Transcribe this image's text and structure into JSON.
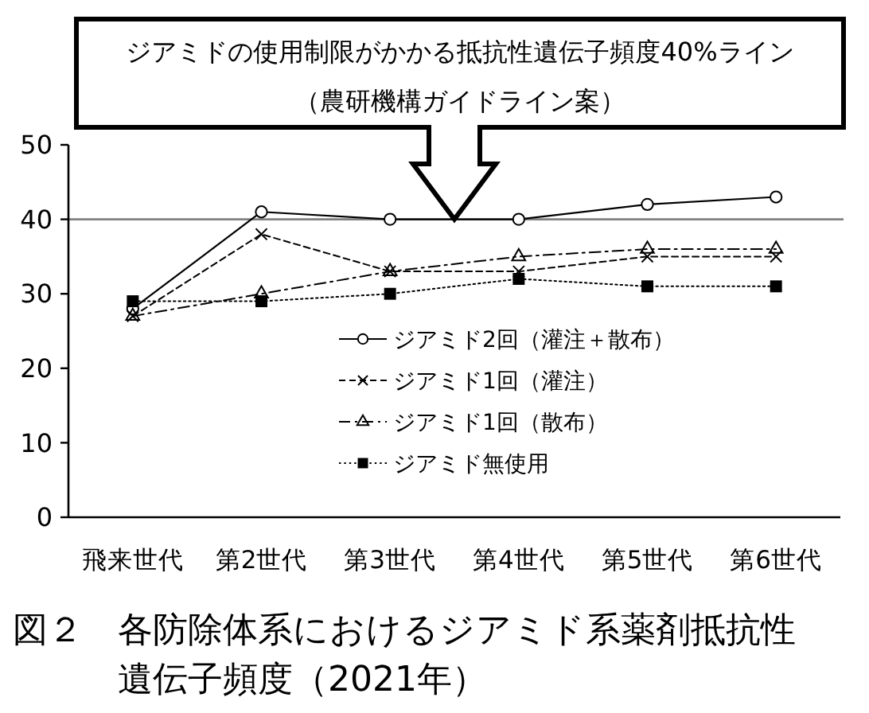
{
  "chart_data": {
    "type": "line",
    "title": "図２　各防除体系におけるジアミド系薬剤抵抗性遺伝子頻度（2021年）",
    "categories": [
      "飛来世代",
      "第2世代",
      "第3世代",
      "第4世代",
      "第5世代",
      "第6世代"
    ],
    "series": [
      {
        "name": "ジアミド2回（灌注＋散布）",
        "color": "#000000",
        "values": [
          28,
          41,
          40,
          40,
          42,
          43
        ],
        "marker": "circle",
        "line_style": "solid"
      },
      {
        "name": "ジアミド1回（灌注）",
        "color": "#000000",
        "values": [
          27,
          38,
          33,
          33,
          35,
          35
        ],
        "marker": "cross",
        "line_style": "dashed"
      },
      {
        "name": "ジアミド1回（散布）",
        "color": "#000000",
        "values": [
          27,
          30,
          33,
          35,
          36,
          36
        ],
        "marker": "triangle",
        "line_style": "dashdot"
      },
      {
        "name": "ジアミド無使用",
        "color": "#000000",
        "values": [
          29,
          29,
          30,
          32,
          31,
          31
        ],
        "marker": "square",
        "line_style": "dotted"
      }
    ],
    "ylim": [
      0,
      50
    ],
    "yticks": [
      0,
      10,
      20,
      30,
      40,
      50
    ],
    "legend": "bottom",
    "ref_lines": [
      {
        "axis": "y",
        "value": 40,
        "color": "#808080"
      }
    ],
    "annotations": [
      "ジアミドの使用制限がかかる抵抗性遺伝子頻度40%ライン（農研機構ガイドライン案）"
    ]
  }
}
